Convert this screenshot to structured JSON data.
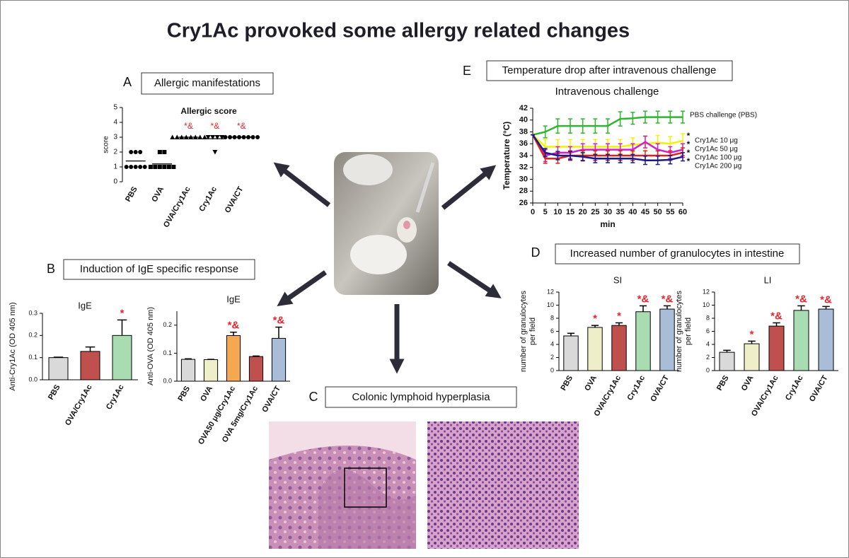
{
  "title": "Cry1Ac provoked some allergy related changes",
  "panels": [
    {
      "letter": "A",
      "caption": "Allergic manifestations"
    },
    {
      "letter": "B",
      "caption": "Induction of IgE specific response"
    },
    {
      "letter": "C",
      "caption": "Colonic lymphoid  hyperplasia"
    },
    {
      "letter": "D",
      "caption": "Increased number of granulocytes in intestine"
    },
    {
      "letter": "E",
      "caption": "Temperature drop after intravenous challenge"
    }
  ],
  "chart_data": [
    {
      "type": "dot",
      "title": "Allergic score",
      "ylabel": "score",
      "categories": [
        "PBS",
        "OVA",
        "OVA/Cry1Ac",
        "Cry1Ac",
        "OVA/CT"
      ],
      "values": [
        [
          2,
          2,
          2,
          1,
          1,
          1,
          1,
          1
        ],
        [
          2,
          2,
          1,
          1,
          1,
          1,
          1,
          1
        ],
        [
          3,
          3,
          3,
          3,
          3,
          3,
          3,
          3
        ],
        [
          3,
          3,
          3,
          3,
          2
        ],
        [
          3,
          3,
          3,
          3,
          3,
          3,
          3,
          3
        ]
      ],
      "means": [
        1.4,
        1.2,
        3,
        2.9,
        3
      ],
      "markers": [
        "circle",
        "square",
        "triangle-up",
        "triangle-down",
        "circle"
      ],
      "annotations": [
        null,
        null,
        "*&",
        "*&",
        "*&"
      ],
      "annotation_color": "#e8242b",
      "ylim": [
        0,
        5
      ],
      "yticks": [
        0,
        1,
        2,
        3,
        4,
        5
      ]
    },
    {
      "type": "bar",
      "title": "IgE",
      "ylabel": "Anti-Cry1Ac (OD 405 nm)",
      "categories": [
        "PBS",
        "OVA/Cry1Ac",
        "Cry1Ac"
      ],
      "values": [
        0.1,
        0.128,
        0.2
      ],
      "errors": [
        0.002,
        0.02,
        0.07
      ],
      "colors": [
        "#d9d9d9",
        "#c0504d",
        "#a9dcb0"
      ],
      "annotations": [
        null,
        null,
        "*"
      ],
      "annotation_color": "#e8242b",
      "ylim": [
        0,
        0.3
      ],
      "yticks": [
        {
          "value": 0,
          "label": "0.0"
        },
        0.1,
        0.2,
        0.3
      ]
    },
    {
      "type": "bar",
      "title": "IgE",
      "ylabel": "Anti-OVA (OD  405 nm)",
      "categories": [
        "PBS",
        "OVA",
        "OVA50 μg/Cry1Ac",
        "OVA 5mg/Cry1Ac",
        "OVA/CT"
      ],
      "values": [
        0.078,
        0.077,
        0.163,
        0.088,
        0.153
      ],
      "errors": [
        0.002,
        0.001,
        0.012,
        0.002,
        0.04
      ],
      "colors": [
        "#d9d9d9",
        "#eeeec8",
        "#f4a950",
        "#c0504d",
        "#a9bcd8"
      ],
      "annotations": [
        null,
        null,
        "*&",
        null,
        "*&"
      ],
      "annotation_color": "#e8242b",
      "ylim": [
        0,
        0.25
      ],
      "yticks": [
        {
          "value": 0,
          "label": "0.0"
        },
        0.1,
        0.2
      ]
    },
    {
      "type": "line",
      "title": "Intravenous challenge",
      "xlabel": "min",
      "ylabel": "Temperature (°C)",
      "x": [
        0,
        5,
        10,
        15,
        20,
        25,
        30,
        35,
        40,
        45,
        50,
        55,
        60
      ],
      "series": [
        {
          "name": "PBS challenge (PBS)",
          "color": "#2fb52f",
          "values": [
            37.5,
            38,
            39,
            39,
            39,
            39,
            39,
            40.2,
            40.3,
            40.5,
            40.5,
            40.5,
            40.5
          ],
          "errors": [
            0,
            1,
            1.2,
            1.2,
            1.2,
            1.2,
            1.2,
            1.2,
            1,
            1,
            1,
            1,
            1
          ]
        },
        {
          "name": "Cry1Ac 10 μg",
          "marker_label": "*",
          "color": "#f2f200",
          "values": [
            37.5,
            35.5,
            35.5,
            35.5,
            35.5,
            35.5,
            35.5,
            35.5,
            35.8,
            36,
            36.2,
            36,
            36.5
          ],
          "errors": [
            0,
            1.2,
            1.2,
            1.2,
            1.2,
            1.2,
            1.2,
            1.2,
            1.2,
            1.2,
            1.2,
            1.2,
            1.2
          ]
        },
        {
          "name": "Cry1Ac 50 μg",
          "marker_label": "*",
          "color": "#d020d0",
          "values": [
            37.5,
            34,
            34.5,
            34.5,
            35,
            35,
            35,
            35,
            35,
            36.3,
            35,
            34.5,
            35
          ],
          "errors": [
            0,
            1,
            1,
            1,
            1,
            1,
            1,
            1,
            1,
            1,
            1,
            1,
            1
          ]
        },
        {
          "name": "Cry1Ac 100 μg",
          "marker_label": "*",
          "color": "#e0201a",
          "values": [
            37.5,
            33.5,
            33.5,
            34,
            34,
            34,
            34,
            34,
            34,
            34,
            34,
            34,
            34.5
          ],
          "errors": [
            0,
            0.8,
            0.8,
            0.8,
            0.8,
            0.8,
            0.8,
            0.8,
            0.8,
            0.8,
            0.8,
            0.8,
            0.8
          ]
        },
        {
          "name": "Cry1Ac 200 μg",
          "marker_label": "*",
          "color": "#1a1a8c",
          "values": [
            37.5,
            34.5,
            34,
            34,
            33.8,
            33.5,
            33.5,
            33.5,
            33.5,
            33.2,
            33.2,
            33.3,
            33.8
          ],
          "errors": [
            0,
            0.7,
            0.7,
            0.7,
            0.7,
            0.7,
            0.7,
            0.7,
            0.7,
            0.7,
            0.7,
            0.7,
            0.7
          ]
        }
      ],
      "xlim": [
        0,
        60
      ],
      "xticks": [
        0,
        5,
        10,
        15,
        20,
        25,
        30,
        35,
        40,
        45,
        50,
        55,
        60
      ],
      "ylim": [
        26,
        42
      ],
      "yticks": [
        26,
        28,
        30,
        32,
        34,
        36,
        38,
        40,
        42
      ]
    },
    {
      "type": "bar",
      "title": "SI",
      "ylabel": [
        "number of granulocytes",
        "per field"
      ],
      "categories": [
        "PBS",
        "OVA",
        "OVA/Cry1Ac",
        "Cry1Ac",
        "OVA/CT"
      ],
      "values": [
        5.3,
        6.6,
        6.9,
        9.0,
        9.4
      ],
      "errors": [
        0.4,
        0.3,
        0.4,
        0.9,
        0.5
      ],
      "colors": [
        "#d9d9d9",
        "#eeeec8",
        "#c0504d",
        "#a9dcb0",
        "#a9bcd8"
      ],
      "annotations": [
        null,
        "*",
        "*",
        "*&",
        "*&"
      ],
      "annotation_color": "#e8242b",
      "ylim": [
        0,
        12
      ],
      "yticks": [
        0,
        2,
        4,
        6,
        8,
        10,
        12
      ]
    },
    {
      "type": "bar",
      "title": "LI",
      "ylabel": [
        "number of granulocytes",
        "per field"
      ],
      "categories": [
        "PBS",
        "OVA",
        "OVA/Cry1Ac",
        "Cry1Ac",
        "OVA/CT"
      ],
      "values": [
        2.8,
        4.1,
        6.8,
        9.2,
        9.4
      ],
      "errors": [
        0.3,
        0.4,
        0.5,
        0.7,
        0.4
      ],
      "colors": [
        "#d9d9d9",
        "#eeeec8",
        "#c0504d",
        "#a9dcb0",
        "#a9bcd8"
      ],
      "annotations": [
        null,
        "*",
        "*&",
        "*&",
        "*&"
      ],
      "annotation_color": "#e8242b",
      "ylim": [
        0,
        12
      ],
      "yticks": [
        0,
        2,
        4,
        6,
        8,
        10,
        12
      ]
    }
  ]
}
